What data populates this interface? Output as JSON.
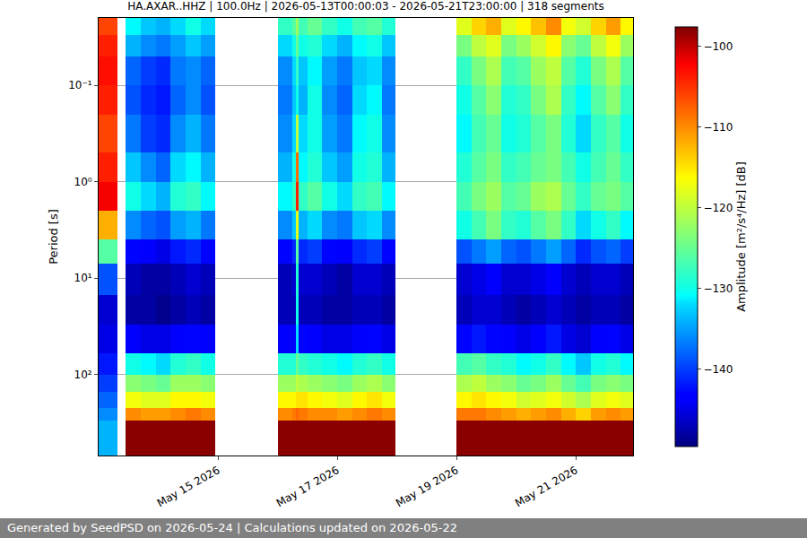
{
  "chart_data": {
    "type": "heatmap",
    "title": "HA.AXAR..HHZ | 100.0Hz | 2026-05-13T00:00:03 - 2026-05-21T23:00:00 | 318 segments",
    "y_label": "Period [s]",
    "colorbar_label": "Amplitude [m²/s⁴/Hz] [dB]",
    "footer": "Generated by SeedPSD on 2026-05-24 | Calculations updated on 2026-05-22",
    "log": "y",
    "grid": true,
    "xlim": [
      "2026-05-13 00:00:03",
      "2026-05-21 23:00:00"
    ],
    "xticks": [
      {
        "value": "2026-05-15",
        "label": "May 15 2026"
      },
      {
        "value": "2026-05-17",
        "label": "May 17 2026"
      },
      {
        "value": "2026-05-19",
        "label": "May 19 2026"
      },
      {
        "value": "2026-05-21",
        "label": "May 21 2026"
      }
    ],
    "ylim": [
      0.02,
      690
    ],
    "yticks": [
      {
        "value": 0.1,
        "label": "10⁻¹"
      },
      {
        "value": 1,
        "label": "10⁰"
      },
      {
        "value": 10,
        "label": "10¹"
      },
      {
        "value": 100,
        "label": "10²"
      }
    ],
    "zlim": [
      -149.6,
      -97.6
    ],
    "zticks": [
      -140,
      -130,
      -120,
      -110,
      -100
    ],
    "x_edges": [
      "2026-05-13 00:00:03",
      "2026-05-13 07:30",
      "2026-05-13 11:00",
      "2026-05-13 17:00",
      "2026-05-13 23:00",
      "2026-05-14 05:00",
      "2026-05-14 11:00",
      "2026-05-14 17:00",
      "2026-05-14 23:00",
      "2026-05-16 00:00",
      "2026-05-16 06:00",
      "2026-05-16 07:30",
      "2026-05-16 08:30",
      "2026-05-16 12:00",
      "2026-05-16 18:00",
      "2026-05-17 00:00",
      "2026-05-17 06:00",
      "2026-05-17 12:00",
      "2026-05-17 18:00",
      "2026-05-17 23:30",
      "2026-05-19 00:00",
      "2026-05-19 06:00",
      "2026-05-19 12:00",
      "2026-05-19 18:00",
      "2026-05-20 00:00",
      "2026-05-20 06:00",
      "2026-05-20 12:00",
      "2026-05-20 18:00",
      "2026-05-21 00:00",
      "2026-05-21 06:00",
      "2026-05-21 12:00",
      "2026-05-21 18:00",
      "2026-05-21 23:00:00"
    ],
    "y_edges": [
      0.02,
      0.03,
      0.05,
      0.1,
      0.2,
      0.5,
      1,
      2,
      4,
      7,
      15,
      30,
      60,
      100,
      150,
      220,
      300,
      690
    ],
    "cells": [
      [
        -106,
        null,
        -131,
        -133,
        -134,
        -132,
        -130,
        -132,
        null,
        -128,
        -126,
        -122,
        -127,
        -125,
        -128,
        -130,
        -127,
        -126,
        -129,
        null,
        -118,
        -114,
        -112,
        -118,
        -116,
        -113,
        -110,
        -117,
        -119,
        -114,
        -111,
        -116
      ],
      [
        -104,
        null,
        -134,
        -136,
        -137,
        -135,
        -133,
        -135,
        null,
        -132,
        -130,
        -125,
        -130,
        -129,
        -132,
        -134,
        -131,
        -130,
        -133,
        null,
        -124,
        -120,
        -118,
        -124,
        -122,
        -119,
        -116,
        -123,
        -125,
        -120,
        -117,
        -122
      ],
      [
        -103,
        null,
        -138,
        -140,
        -141,
        -137,
        -136,
        -138,
        null,
        -136,
        -132,
        -128,
        -133,
        -131,
        -135,
        -137,
        -133,
        -132,
        -136,
        null,
        -128,
        -124,
        -121,
        -127,
        -126,
        -122,
        -120,
        -126,
        -129,
        -124,
        -121,
        -126
      ],
      [
        -104,
        null,
        -139,
        -141,
        -142,
        -138,
        -136,
        -139,
        null,
        -137,
        -133,
        -130,
        -134,
        -130,
        -136,
        -138,
        -132,
        -131,
        -137,
        null,
        -130,
        -126,
        -123,
        -129,
        -128,
        -124,
        -121,
        -128,
        -131,
        -126,
        -123,
        -128
      ],
      [
        -106,
        null,
        -137,
        -140,
        -141,
        -136,
        -134,
        -137,
        null,
        -136,
        -132,
        -120,
        -132,
        -130,
        -135,
        -137,
        -131,
        -130,
        -136,
        null,
        -131,
        -127,
        -125,
        -130,
        -129,
        -126,
        -124,
        -129,
        -132,
        -128,
        -126,
        -130
      ],
      [
        -104,
        null,
        -133,
        -136,
        -138,
        -132,
        -131,
        -134,
        null,
        -134,
        -130,
        -108,
        -131,
        -129,
        -133,
        -135,
        -130,
        -129,
        -134,
        null,
        -129,
        -126,
        -124,
        -128,
        -127,
        -125,
        -124,
        -127,
        -130,
        -127,
        -125,
        -128
      ],
      [
        -102,
        null,
        -130,
        -132,
        -134,
        -129,
        -128,
        -131,
        null,
        -131,
        -128,
        -104,
        -128,
        -126,
        -130,
        -132,
        -128,
        -127,
        -131,
        null,
        -127,
        -124,
        -122,
        -126,
        -125,
        -122,
        -121,
        -125,
        -128,
        -125,
        -124,
        -126
      ],
      [
        -112,
        null,
        -136,
        -138,
        -139,
        -135,
        -134,
        -137,
        null,
        -136,
        -133,
        -118,
        -134,
        -132,
        -136,
        -137,
        -133,
        -132,
        -136,
        null,
        -130,
        -127,
        -124,
        -128,
        -129,
        -126,
        -124,
        -128,
        -132,
        -130,
        -128,
        -131
      ],
      [
        -126,
        null,
        -143,
        -144,
        -145,
        -142,
        -141,
        -143,
        null,
        -143,
        -141,
        -126,
        -141,
        -140,
        -143,
        -144,
        -141,
        -140,
        -143,
        null,
        -139,
        -137,
        -135,
        -138,
        -139,
        -137,
        -135,
        -138,
        -141,
        -139,
        -138,
        -140
      ],
      [
        -139,
        null,
        -147,
        -148,
        -148,
        -147,
        -146,
        -147,
        null,
        -147,
        -146,
        -129,
        -146,
        -146,
        -147,
        -148,
        -146,
        -146,
        -147,
        null,
        -146,
        -145,
        -144,
        -146,
        -146,
        -145,
        -144,
        -146,
        -147,
        -146,
        -146,
        -147
      ],
      [
        -146,
        null,
        -148,
        -148,
        -149,
        -148,
        -147,
        -148,
        null,
        -147,
        -147,
        -130,
        -147,
        -147,
        -148,
        -148,
        -147,
        -147,
        -148,
        null,
        -147,
        -146,
        -146,
        -147,
        -148,
        -147,
        -146,
        -147,
        -148,
        -147,
        -147,
        -148
      ],
      [
        -145,
        null,
        -144,
        -145,
        -145,
        -144,
        -143,
        -144,
        null,
        -144,
        -144,
        -132,
        -143,
        -144,
        -145,
        -145,
        -144,
        -143,
        -145,
        null,
        -143,
        -142,
        -143,
        -144,
        -145,
        -144,
        -142,
        -145,
        -146,
        -144,
        -143,
        -145
      ],
      [
        -142,
        null,
        -130,
        -131,
        -132,
        -129,
        -128,
        -130,
        null,
        -129,
        -129,
        -125,
        -128,
        -129,
        -130,
        -131,
        -129,
        -128,
        -130,
        null,
        -127,
        -126,
        -128,
        -129,
        -131,
        -130,
        -128,
        -131,
        -133,
        -130,
        -129,
        -131
      ],
      [
        -140,
        null,
        -123,
        -124,
        -125,
        -122,
        -122,
        -123,
        null,
        -122,
        -122,
        -120,
        -121,
        -122,
        -123,
        -124,
        -122,
        -121,
        -123,
        null,
        -121,
        -120,
        -122,
        -123,
        -125,
        -124,
        -122,
        -125,
        -127,
        -124,
        -123,
        -124
      ],
      [
        -138,
        null,
        -117,
        -118,
        -118,
        -116,
        -116,
        -117,
        null,
        -116,
        -116,
        -115,
        -115,
        -116,
        -117,
        -118,
        -116,
        -115,
        -117,
        null,
        -116,
        -115,
        -116,
        -117,
        -119,
        -118,
        -117,
        -119,
        -121,
        -118,
        -117,
        -118
      ],
      [
        -136,
        null,
        -110,
        -111,
        -111,
        -110,
        -109,
        -110,
        null,
        -110,
        -109,
        -108,
        -109,
        -110,
        -110,
        -111,
        -110,
        -109,
        -110,
        null,
        -109,
        -109,
        -110,
        -111,
        -112,
        -111,
        -110,
        -112,
        -114,
        -111,
        -110,
        -111
      ],
      [
        -134,
        null,
        -98,
        -98,
        -98,
        -98,
        -98,
        -98,
        null,
        -98,
        -98,
        -98,
        -98,
        -98,
        -98,
        -98,
        -98,
        -98,
        -98,
        null,
        -98,
        -98,
        -98,
        -98,
        -98,
        -98,
        -98,
        -98,
        -98,
        -98,
        -98,
        -98
      ]
    ]
  }
}
